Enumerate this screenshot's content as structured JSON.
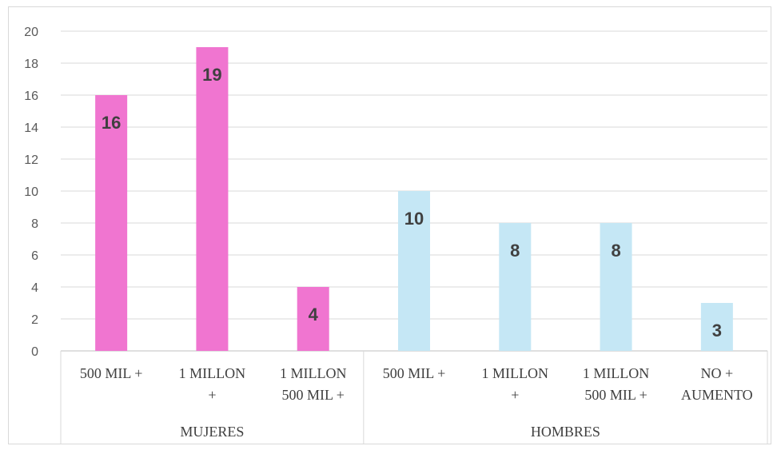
{
  "chart_data": {
    "type": "bar",
    "ylim": [
      0,
      20
    ],
    "yticks": [
      0,
      2,
      4,
      6,
      8,
      10,
      12,
      14,
      16,
      18,
      20
    ],
    "grid": true,
    "legend": "none",
    "groups": [
      {
        "label": "MUJERES",
        "color": "#f075d0",
        "bars": [
          {
            "category": [
              "500 MIL +"
            ],
            "value": 16,
            "label": "16"
          },
          {
            "category": [
              "1 MILLON",
              "+"
            ],
            "value": 19,
            "label": "19"
          },
          {
            "category": [
              "1 MILLON",
              "500 MIL +"
            ],
            "value": 4,
            "label": "4"
          }
        ]
      },
      {
        "label": "HOMBRES",
        "color": "#c5e7f5",
        "bars": [
          {
            "category": [
              "500 MIL +"
            ],
            "value": 10,
            "label": "10"
          },
          {
            "category": [
              "1 MILLON",
              "+"
            ],
            "value": 8,
            "label": "8"
          },
          {
            "category": [
              "1 MILLON",
              "500 MIL +"
            ],
            "value": 8,
            "label": "8"
          },
          {
            "category": [
              "NO +",
              "AUMENTO"
            ],
            "value": 3,
            "label": "3"
          }
        ]
      }
    ]
  }
}
